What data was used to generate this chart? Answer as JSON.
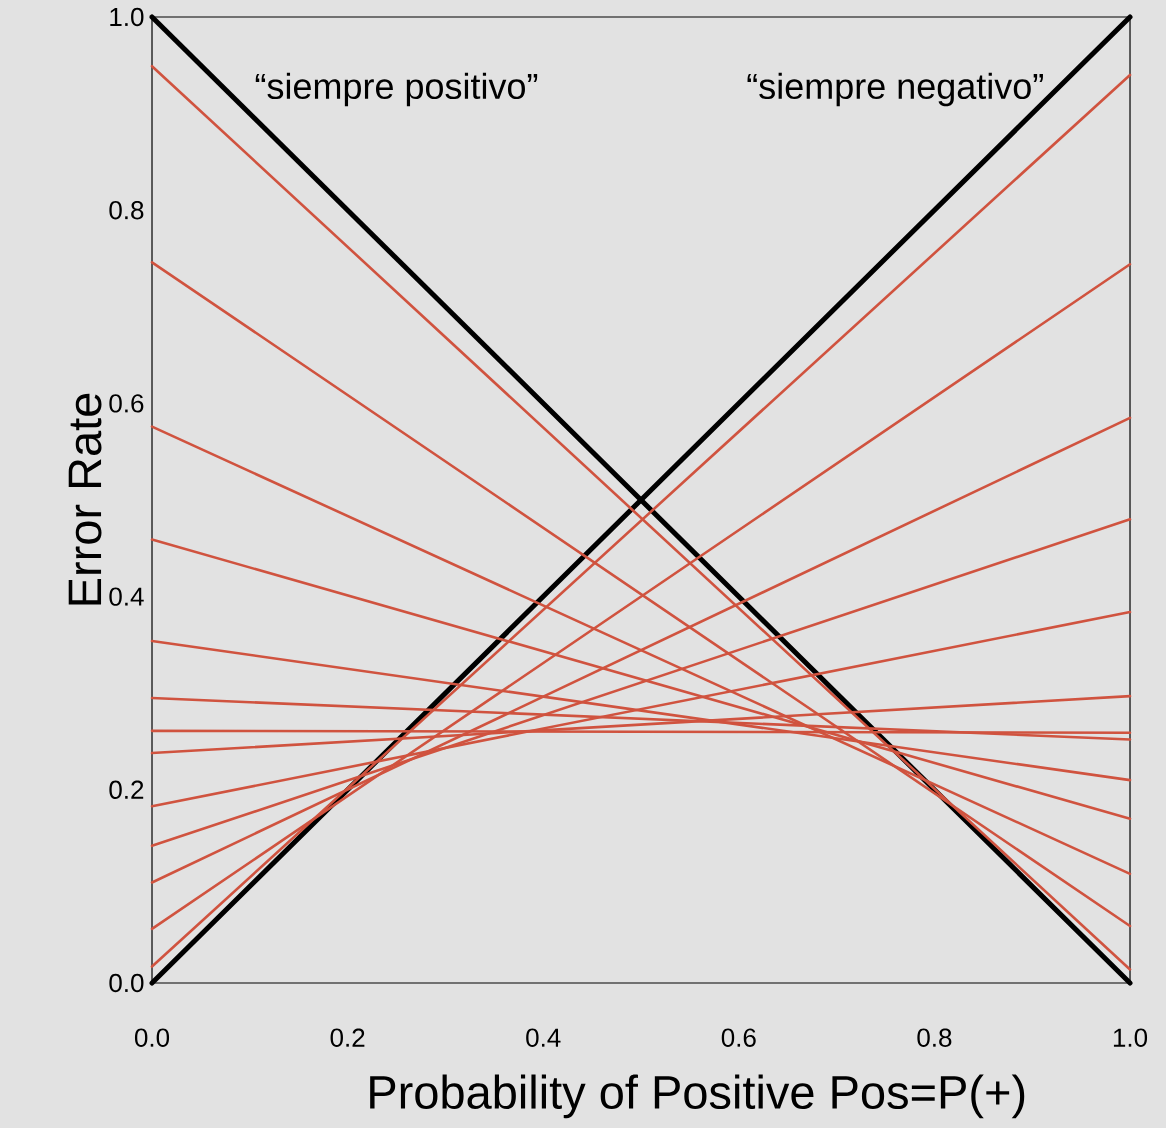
{
  "chart_data": {
    "type": "line",
    "xlabel": "Probability of Positive Pos=P(+)",
    "ylabel": "Error Rate",
    "annotations": [
      "“siempre positivo”",
      "“siempre negativo”"
    ],
    "x": [
      0,
      1
    ],
    "series": [
      {
        "color": "#000000",
        "values": [
          1,
          0
        ]
      },
      {
        "color": "#000000",
        "values": [
          0,
          1
        ]
      },
      {
        "color": "#d0533f",
        "values": [
          0.949,
          0.014
        ]
      },
      {
        "color": "#d0533f",
        "values": [
          0.746,
          0.059
        ]
      },
      {
        "color": "#d0533f",
        "values": [
          0.576,
          0.113
        ]
      },
      {
        "color": "#d0533f",
        "values": [
          0.459,
          0.17
        ]
      },
      {
        "color": "#d0533f",
        "values": [
          0.354,
          0.21
        ]
      },
      {
        "color": "#d0533f",
        "values": [
          0.295,
          0.252
        ]
      },
      {
        "color": "#d0533f",
        "values": [
          0.261,
          0.259
        ]
      },
      {
        "color": "#d0533f",
        "values": [
          0.238,
          0.297
        ]
      },
      {
        "color": "#d0533f",
        "values": [
          0.183,
          0.384
        ]
      },
      {
        "color": "#d0533f",
        "values": [
          0.142,
          0.48
        ]
      },
      {
        "color": "#d0533f",
        "values": [
          0.104,
          0.585
        ]
      },
      {
        "color": "#d0533f",
        "values": [
          0.056,
          0.744
        ]
      },
      {
        "color": "#d0533f",
        "values": [
          0.017,
          0.94
        ]
      }
    ],
    "xlim": [
      0,
      1
    ],
    "ylim": [
      0,
      1
    ],
    "xticks": [
      {
        "value": 0,
        "label": "0.0"
      },
      0.2,
      0.4,
      0.6,
      0.8,
      {
        "value": 1,
        "label": "1.0"
      }
    ],
    "yticks": [
      {
        "value": 0,
        "label": "0.0"
      },
      0.2,
      0.4,
      0.6,
      0.8,
      {
        "value": 1,
        "label": "1.0"
      }
    ],
    "grid": false,
    "legend": false,
    "marker": "none",
    "line_style": "solid"
  }
}
